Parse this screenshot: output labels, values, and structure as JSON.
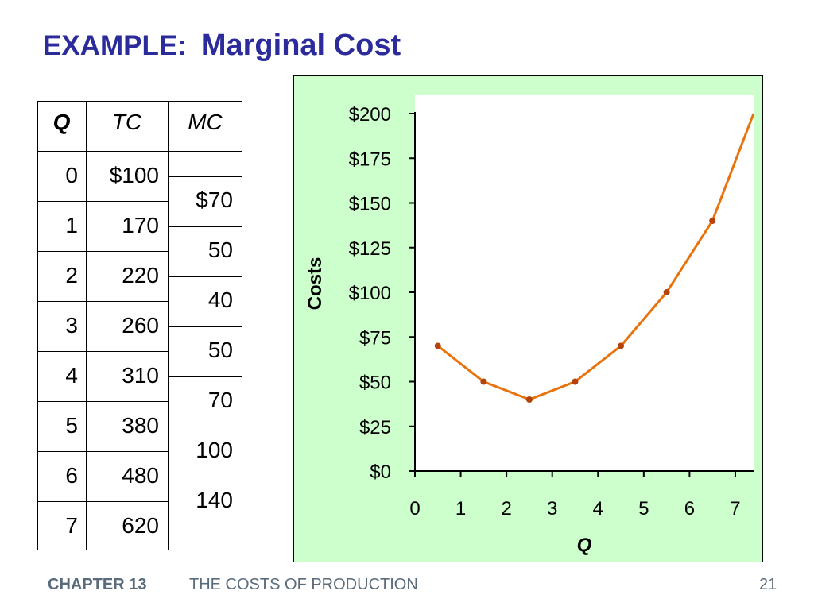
{
  "slide": {
    "title_prefix": "EXAMPLE:",
    "title_main": "Marginal Cost",
    "footer_chapter": "CHAPTER 13",
    "footer_title": "THE COSTS OF PRODUCTION",
    "page_number": "21"
  },
  "table": {
    "headers": [
      "Q",
      "TC",
      "MC"
    ],
    "rows": [
      {
        "q": "0",
        "tc": "$100"
      },
      {
        "q": "1",
        "tc": "170"
      },
      {
        "q": "2",
        "tc": "220"
      },
      {
        "q": "3",
        "tc": "260"
      },
      {
        "q": "4",
        "tc": "310"
      },
      {
        "q": "5",
        "tc": "380"
      },
      {
        "q": "6",
        "tc": "480"
      },
      {
        "q": "7",
        "tc": "620"
      }
    ],
    "mc": [
      "$70",
      "50",
      "40",
      "50",
      "70",
      "100",
      "140"
    ]
  },
  "chart_data": {
    "type": "line",
    "title": "",
    "xlabel": "Q",
    "ylabel": "Costs",
    "xlim": [
      0,
      7.4
    ],
    "ylim": [
      0,
      200
    ],
    "x_ticks": [
      "0",
      "1",
      "2",
      "3",
      "4",
      "5",
      "6",
      "7"
    ],
    "y_ticks": [
      "$0",
      "$25",
      "$50",
      "$75",
      "$100",
      "$125",
      "$150",
      "$175",
      "$200"
    ],
    "series": [
      {
        "x": [
          0.5,
          1.5,
          2.5,
          3.5,
          4.5,
          5.5,
          6.5,
          7.4
        ],
        "y": [
          70,
          50,
          40,
          50,
          70,
          100,
          140,
          200
        ],
        "markers": [
          true,
          true,
          true,
          true,
          true,
          true,
          true,
          false
        ]
      }
    ],
    "colors": {
      "panel_bg": "#CCFFCC",
      "plot_bg": "#FFFFFF",
      "line": "#E8720C",
      "marker": "#B5420A"
    }
  }
}
